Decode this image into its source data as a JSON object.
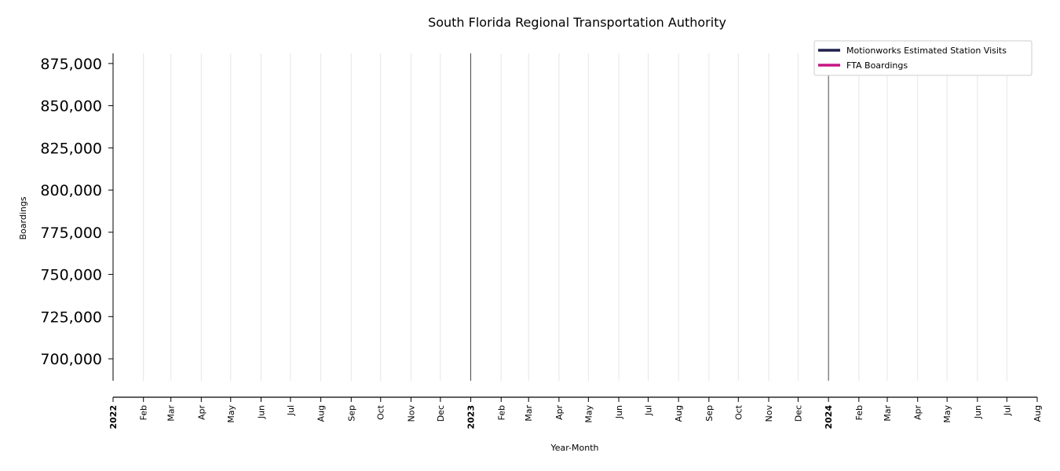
{
  "chart_data": {
    "type": "line",
    "title": "South Florida Regional Transportation Authority",
    "xlabel": "Year-Month",
    "ylabel": "Boardings",
    "ylim": [
      687000,
      881000
    ],
    "xlim": [
      "2022-01",
      "2024-08"
    ],
    "y_ticks": [
      700000,
      725000,
      750000,
      775000,
      800000,
      825000,
      850000,
      875000
    ],
    "y_tick_labels": [
      "700,000",
      "725,000",
      "750,000",
      "775,000",
      "800,000",
      "825,000",
      "850,000",
      "875,000"
    ],
    "x_ticks": [
      {
        "date": "2022-01",
        "label": "2022",
        "year": true
      },
      {
        "date": "2022-02",
        "label": "Feb",
        "year": false
      },
      {
        "date": "2022-03",
        "label": "Mar",
        "year": false
      },
      {
        "date": "2022-04",
        "label": "Apr",
        "year": false
      },
      {
        "date": "2022-05",
        "label": "May",
        "year": false
      },
      {
        "date": "2022-06",
        "label": "Jun",
        "year": false
      },
      {
        "date": "2022-07",
        "label": "Jul",
        "year": false
      },
      {
        "date": "2022-08",
        "label": "Aug",
        "year": false
      },
      {
        "date": "2022-09",
        "label": "Sep",
        "year": false
      },
      {
        "date": "2022-10",
        "label": "Oct",
        "year": false
      },
      {
        "date": "2022-11",
        "label": "Nov",
        "year": false
      },
      {
        "date": "2022-12",
        "label": "Dec",
        "year": false
      },
      {
        "date": "2023-01",
        "label": "2023",
        "year": true
      },
      {
        "date": "2023-02",
        "label": "Feb",
        "year": false
      },
      {
        "date": "2023-03",
        "label": "Mar",
        "year": false
      },
      {
        "date": "2023-04",
        "label": "Apr",
        "year": false
      },
      {
        "date": "2023-05",
        "label": "May",
        "year": false
      },
      {
        "date": "2023-06",
        "label": "Jun",
        "year": false
      },
      {
        "date": "2023-07",
        "label": "Jul",
        "year": false
      },
      {
        "date": "2023-08",
        "label": "Aug",
        "year": false
      },
      {
        "date": "2023-09",
        "label": "Sep",
        "year": false
      },
      {
        "date": "2023-10",
        "label": "Oct",
        "year": false
      },
      {
        "date": "2023-11",
        "label": "Nov",
        "year": false
      },
      {
        "date": "2023-12",
        "label": "Dec",
        "year": false
      },
      {
        "date": "2024-01",
        "label": "2024",
        "year": true
      },
      {
        "date": "2024-02",
        "label": "Feb",
        "year": false
      },
      {
        "date": "2024-03",
        "label": "Mar",
        "year": false
      },
      {
        "date": "2024-04",
        "label": "Apr",
        "year": false
      },
      {
        "date": "2024-05",
        "label": "May",
        "year": false
      },
      {
        "date": "2024-06",
        "label": "Jun",
        "year": false
      },
      {
        "date": "2024-07",
        "label": "Jul",
        "year": false
      },
      {
        "date": "2024-08",
        "label": "Aug",
        "year": false
      }
    ],
    "grid": "vertical",
    "legend_position": "top-right",
    "series": [
      {
        "name": "Motionworks Estimated Station Visits",
        "color": "#1f1f4f",
        "values": []
      },
      {
        "name": "FTA Boardings",
        "color": "#c71585",
        "values": []
      }
    ]
  }
}
